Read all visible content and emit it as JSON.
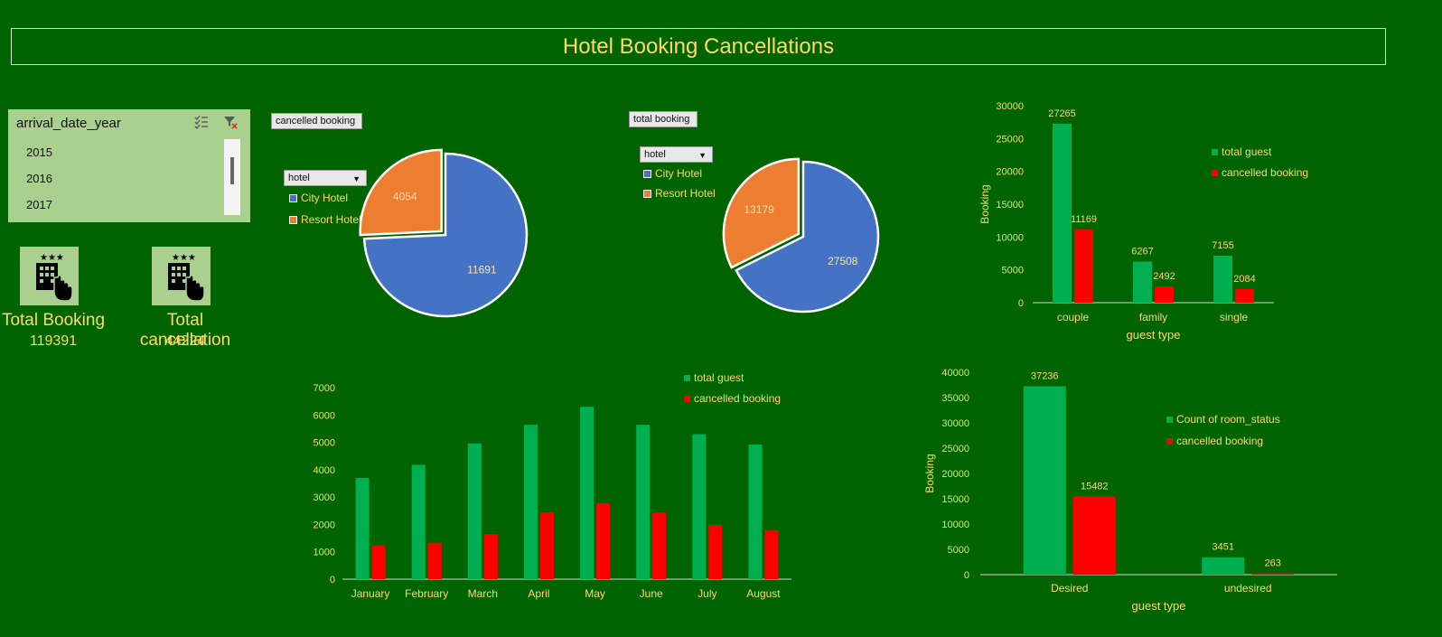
{
  "title": "Hotel Booking Cancellations",
  "slicer": {
    "header": "arrival_date_year",
    "items": [
      "2015",
      "2016",
      "2017"
    ]
  },
  "kpis": {
    "total_booking_label": "Total Booking",
    "total_booking_value": "119391",
    "total_cancellation_label": "Total cancellation",
    "total_cancellation_value": "44224"
  },
  "pie_cancelled": {
    "field_button": "cancelled booking",
    "filter_dropdown": "hotel",
    "legend": [
      "City Hotel",
      "Resort Hotel"
    ]
  },
  "pie_total": {
    "field_button": "total booking",
    "filter_dropdown": "hotel",
    "legend": [
      "City Hotel",
      "Resort Hotel"
    ]
  },
  "colors": {
    "background": "#006400",
    "text": "#ffd966",
    "total_guest": "#00b050",
    "cancelled": "#ff0000",
    "city_hotel": "#4472c4",
    "resort_hotel": "#ed7d31"
  },
  "chart_data": [
    {
      "id": "pie_cancelled",
      "type": "pie",
      "labels": [
        "City Hotel",
        "Resort Hotel"
      ],
      "values": [
        11691,
        4054
      ]
    },
    {
      "id": "pie_total",
      "type": "pie",
      "labels": [
        "City Hotel",
        "Resort Hotel"
      ],
      "values": [
        27508,
        13179
      ]
    },
    {
      "id": "guest_type",
      "type": "bar",
      "categories": [
        "couple",
        "family",
        "single"
      ],
      "series": [
        {
          "name": "total guest",
          "values": [
            27265,
            6267,
            7155
          ]
        },
        {
          "name": "cancelled booking",
          "values": [
            11169,
            2492,
            2084
          ]
        }
      ],
      "xlabel": "guest type",
      "ylabel": "Booking",
      "ylim": [
        0,
        30000
      ],
      "yticks": [
        0,
        5000,
        10000,
        15000,
        20000,
        25000,
        30000
      ],
      "data_labels": true,
      "legend": "right"
    },
    {
      "id": "monthly",
      "type": "bar",
      "categories": [
        "January",
        "February",
        "March",
        "April",
        "May",
        "June",
        "July",
        "August"
      ],
      "series": [
        {
          "name": "total guest",
          "values": [
            3700,
            4180,
            4960,
            5640,
            6300,
            5640,
            5300,
            4920
          ]
        },
        {
          "name": "cancelled booking",
          "values": [
            1240,
            1330,
            1650,
            2440,
            2780,
            2440,
            1980,
            1790
          ]
        }
      ],
      "xlabel": "",
      "ylabel": "",
      "ylim": [
        0,
        7000
      ],
      "yticks": [
        0,
        1000,
        2000,
        3000,
        4000,
        5000,
        6000,
        7000
      ],
      "data_labels": false,
      "legend": "top-right"
    },
    {
      "id": "room_status",
      "type": "bar",
      "categories": [
        "Desired",
        "undesired"
      ],
      "series": [
        {
          "name": "Count of room_status",
          "values": [
            37236,
            3451
          ]
        },
        {
          "name": "cancelled booking",
          "values": [
            15482,
            263
          ]
        }
      ],
      "xlabel": "guest type",
      "ylabel": "Booking",
      "ylim": [
        0,
        40000
      ],
      "yticks": [
        0,
        5000,
        10000,
        15000,
        20000,
        25000,
        30000,
        35000,
        40000
      ],
      "data_labels": true,
      "legend": "right"
    }
  ]
}
